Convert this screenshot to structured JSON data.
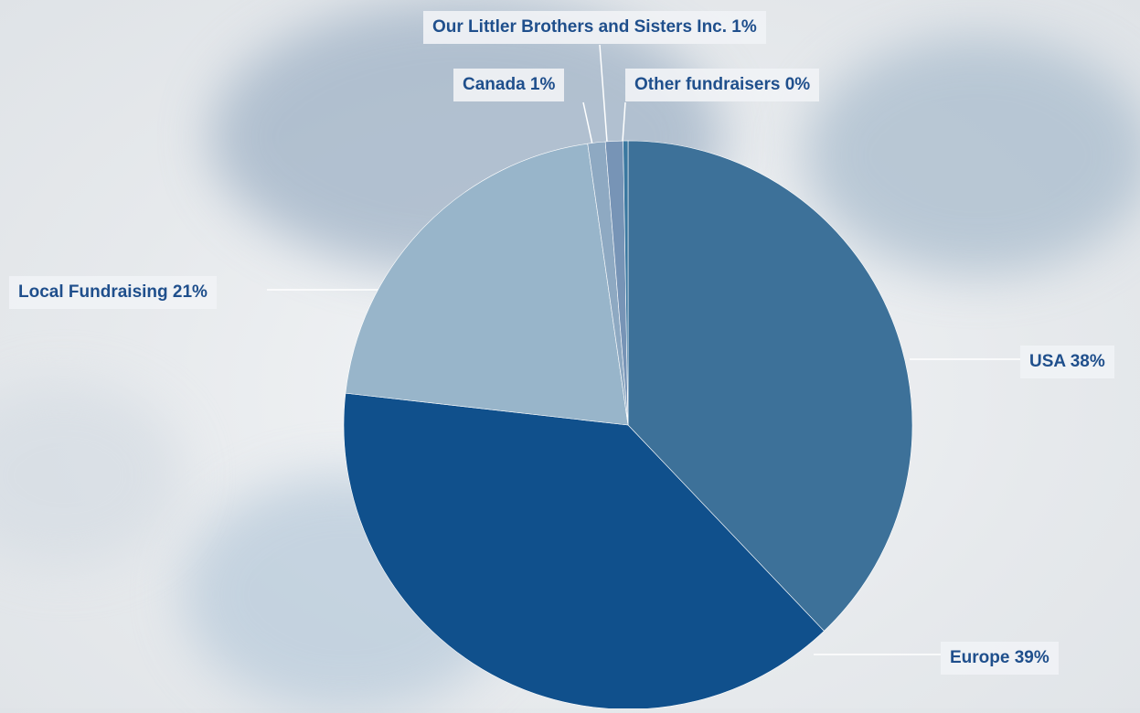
{
  "chart_data": {
    "type": "pie",
    "slices": [
      {
        "name": "USA",
        "value": 38,
        "label": "USA 38%",
        "color": "#3d7199"
      },
      {
        "name": "Europe",
        "value": 39,
        "label": "Europe 39%",
        "color": "#10508c"
      },
      {
        "name": "Local Fundraising",
        "value": 21,
        "label": "Local Fundraising 21%",
        "color": "#98b5ca"
      },
      {
        "name": "Canada",
        "value": 1,
        "label": "Canada 1%",
        "color": "#8ea9c2"
      },
      {
        "name": "Our Littler Brothers and Sisters Inc.",
        "value": 1,
        "label": "Our Littler Brothers and Sisters Inc.  1%",
        "color": "#7794b6"
      },
      {
        "name": "Other fundraisers",
        "value": 0,
        "label": "Other fundraisers 0%",
        "color": "#3b78a0"
      }
    ]
  }
}
